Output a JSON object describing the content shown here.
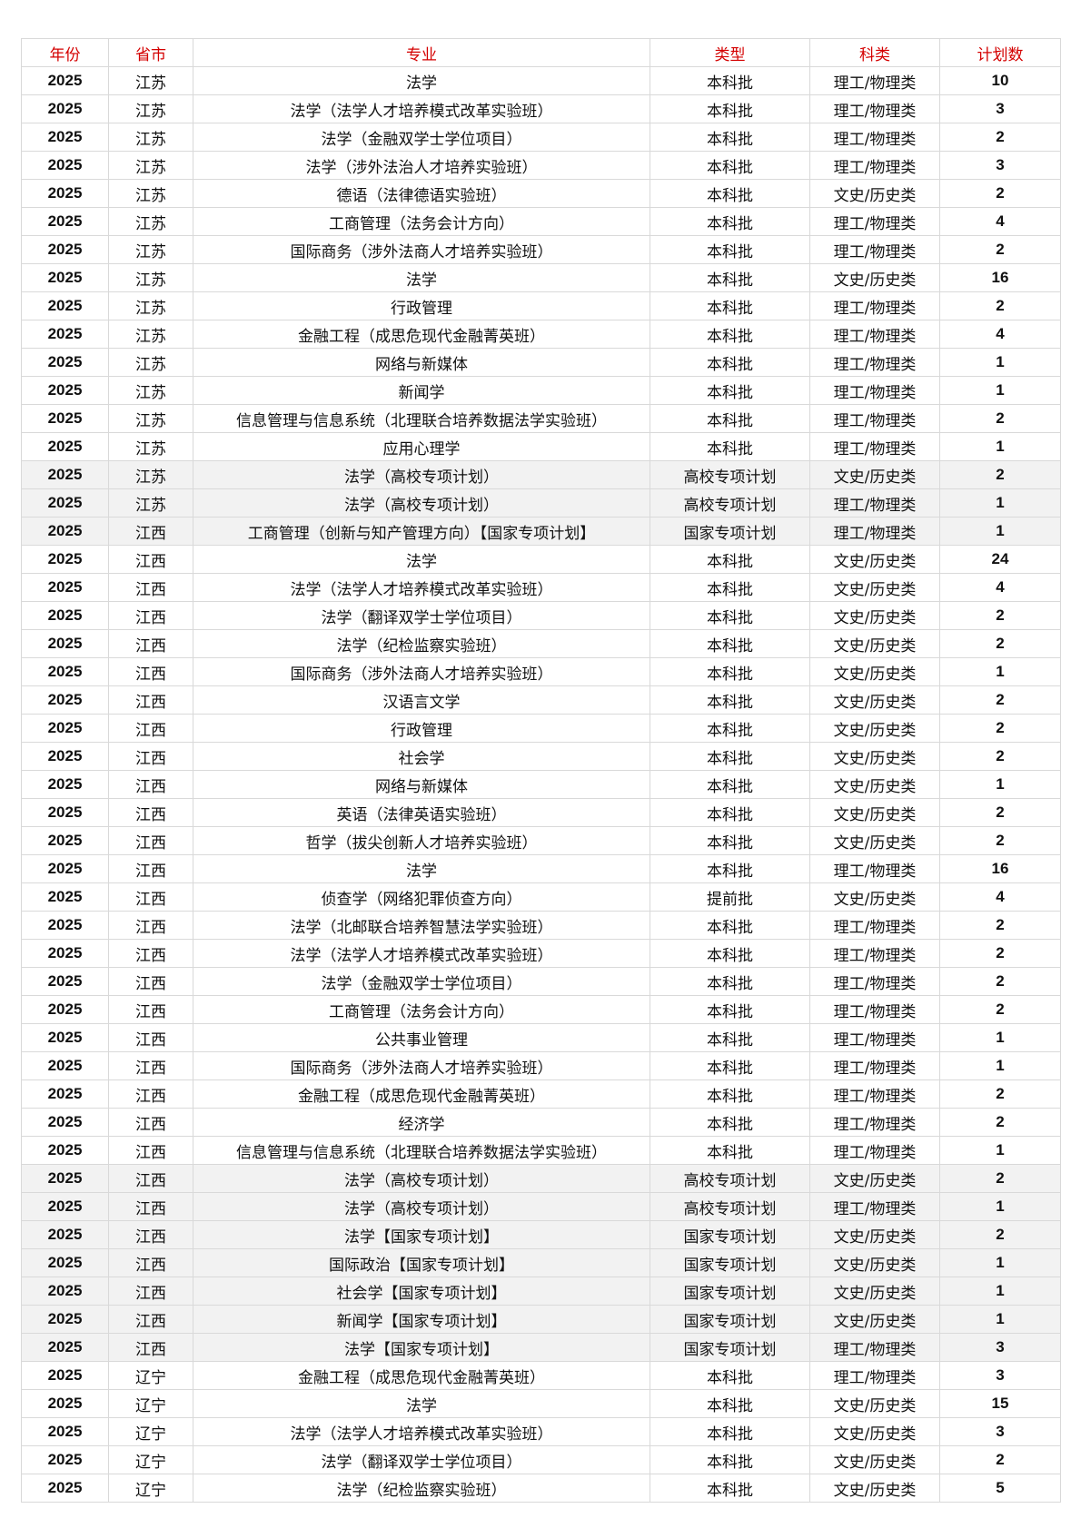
{
  "colors": {
    "header_text": "#d40000",
    "highlight_row": "#f2f2f2",
    "border": "#d9d9d9"
  },
  "table": {
    "headers": [
      "年份",
      "省市",
      "专业",
      "类型",
      "科类",
      "计划数"
    ],
    "rows": [
      [
        "2025",
        "江苏",
        "法学",
        "本科批",
        "理工/物理类",
        "10",
        false
      ],
      [
        "2025",
        "江苏",
        "法学（法学人才培养模式改革实验班）",
        "本科批",
        "理工/物理类",
        "3",
        false
      ],
      [
        "2025",
        "江苏",
        "法学（金融双学士学位项目）",
        "本科批",
        "理工/物理类",
        "2",
        false
      ],
      [
        "2025",
        "江苏",
        "法学（涉外法治人才培养实验班）",
        "本科批",
        "理工/物理类",
        "3",
        false
      ],
      [
        "2025",
        "江苏",
        "德语（法律德语实验班）",
        "本科批",
        "文史/历史类",
        "2",
        false
      ],
      [
        "2025",
        "江苏",
        "工商管理（法务会计方向）",
        "本科批",
        "理工/物理类",
        "4",
        false
      ],
      [
        "2025",
        "江苏",
        "国际商务（涉外法商人才培养实验班）",
        "本科批",
        "理工/物理类",
        "2",
        false
      ],
      [
        "2025",
        "江苏",
        "法学",
        "本科批",
        "文史/历史类",
        "16",
        false
      ],
      [
        "2025",
        "江苏",
        "行政管理",
        "本科批",
        "理工/物理类",
        "2",
        false
      ],
      [
        "2025",
        "江苏",
        "金融工程（成思危现代金融菁英班）",
        "本科批",
        "理工/物理类",
        "4",
        false
      ],
      [
        "2025",
        "江苏",
        "网络与新媒体",
        "本科批",
        "理工/物理类",
        "1",
        false
      ],
      [
        "2025",
        "江苏",
        "新闻学",
        "本科批",
        "理工/物理类",
        "1",
        false
      ],
      [
        "2025",
        "江苏",
        "信息管理与信息系统（北理联合培养数据法学实验班）",
        "本科批",
        "理工/物理类",
        "2",
        false
      ],
      [
        "2025",
        "江苏",
        "应用心理学",
        "本科批",
        "理工/物理类",
        "1",
        false
      ],
      [
        "2025",
        "江苏",
        "法学（高校专项计划）",
        "高校专项计划",
        "文史/历史类",
        "2",
        true
      ],
      [
        "2025",
        "江苏",
        "法学（高校专项计划）",
        "高校专项计划",
        "理工/物理类",
        "1",
        true
      ],
      [
        "2025",
        "江西",
        "工商管理（创新与知产管理方向）【国家专项计划】",
        "国家专项计划",
        "理工/物理类",
        "1",
        true
      ],
      [
        "2025",
        "江西",
        "法学",
        "本科批",
        "文史/历史类",
        "24",
        false
      ],
      [
        "2025",
        "江西",
        "法学（法学人才培养模式改革实验班）",
        "本科批",
        "文史/历史类",
        "4",
        false
      ],
      [
        "2025",
        "江西",
        "法学（翻译双学士学位项目）",
        "本科批",
        "文史/历史类",
        "2",
        false
      ],
      [
        "2025",
        "江西",
        "法学（纪检监察实验班）",
        "本科批",
        "文史/历史类",
        "2",
        false
      ],
      [
        "2025",
        "江西",
        "国际商务（涉外法商人才培养实验班）",
        "本科批",
        "文史/历史类",
        "1",
        false
      ],
      [
        "2025",
        "江西",
        "汉语言文学",
        "本科批",
        "文史/历史类",
        "2",
        false
      ],
      [
        "2025",
        "江西",
        "行政管理",
        "本科批",
        "文史/历史类",
        "2",
        false
      ],
      [
        "2025",
        "江西",
        "社会学",
        "本科批",
        "文史/历史类",
        "2",
        false
      ],
      [
        "2025",
        "江西",
        "网络与新媒体",
        "本科批",
        "文史/历史类",
        "1",
        false
      ],
      [
        "2025",
        "江西",
        "英语（法律英语实验班）",
        "本科批",
        "文史/历史类",
        "2",
        false
      ],
      [
        "2025",
        "江西",
        "哲学（拔尖创新人才培养实验班）",
        "本科批",
        "文史/历史类",
        "2",
        false
      ],
      [
        "2025",
        "江西",
        "法学",
        "本科批",
        "理工/物理类",
        "16",
        false
      ],
      [
        "2025",
        "江西",
        "侦查学（网络犯罪侦查方向）",
        "提前批",
        "文史/历史类",
        "4",
        false
      ],
      [
        "2025",
        "江西",
        "法学（北邮联合培养智慧法学实验班）",
        "本科批",
        "理工/物理类",
        "2",
        false
      ],
      [
        "2025",
        "江西",
        "法学（法学人才培养模式改革实验班）",
        "本科批",
        "理工/物理类",
        "2",
        false
      ],
      [
        "2025",
        "江西",
        "法学（金融双学士学位项目）",
        "本科批",
        "理工/物理类",
        "2",
        false
      ],
      [
        "2025",
        "江西",
        "工商管理（法务会计方向）",
        "本科批",
        "理工/物理类",
        "2",
        false
      ],
      [
        "2025",
        "江西",
        "公共事业管理",
        "本科批",
        "理工/物理类",
        "1",
        false
      ],
      [
        "2025",
        "江西",
        "国际商务（涉外法商人才培养实验班）",
        "本科批",
        "理工/物理类",
        "1",
        false
      ],
      [
        "2025",
        "江西",
        "金融工程（成思危现代金融菁英班）",
        "本科批",
        "理工/物理类",
        "2",
        false
      ],
      [
        "2025",
        "江西",
        "经济学",
        "本科批",
        "理工/物理类",
        "2",
        false
      ],
      [
        "2025",
        "江西",
        "信息管理与信息系统（北理联合培养数据法学实验班）",
        "本科批",
        "理工/物理类",
        "1",
        false
      ],
      [
        "2025",
        "江西",
        "法学（高校专项计划）",
        "高校专项计划",
        "文史/历史类",
        "2",
        true
      ],
      [
        "2025",
        "江西",
        "法学（高校专项计划）",
        "高校专项计划",
        "理工/物理类",
        "1",
        true
      ],
      [
        "2025",
        "江西",
        "法学【国家专项计划】",
        "国家专项计划",
        "文史/历史类",
        "2",
        true
      ],
      [
        "2025",
        "江西",
        "国际政治【国家专项计划】",
        "国家专项计划",
        "文史/历史类",
        "1",
        true
      ],
      [
        "2025",
        "江西",
        "社会学【国家专项计划】",
        "国家专项计划",
        "文史/历史类",
        "1",
        true
      ],
      [
        "2025",
        "江西",
        "新闻学【国家专项计划】",
        "国家专项计划",
        "文史/历史类",
        "1",
        true
      ],
      [
        "2025",
        "江西",
        "法学【国家专项计划】",
        "国家专项计划",
        "理工/物理类",
        "3",
        true
      ],
      [
        "2025",
        "辽宁",
        "金融工程（成思危现代金融菁英班）",
        "本科批",
        "理工/物理类",
        "3",
        false
      ],
      [
        "2025",
        "辽宁",
        "法学",
        "本科批",
        "文史/历史类",
        "15",
        false
      ],
      [
        "2025",
        "辽宁",
        "法学（法学人才培养模式改革实验班）",
        "本科批",
        "文史/历史类",
        "3",
        false
      ],
      [
        "2025",
        "辽宁",
        "法学（翻译双学士学位项目）",
        "本科批",
        "文史/历史类",
        "2",
        false
      ],
      [
        "2025",
        "辽宁",
        "法学（纪检监察实验班）",
        "本科批",
        "文史/历史类",
        "5",
        false
      ]
    ]
  }
}
